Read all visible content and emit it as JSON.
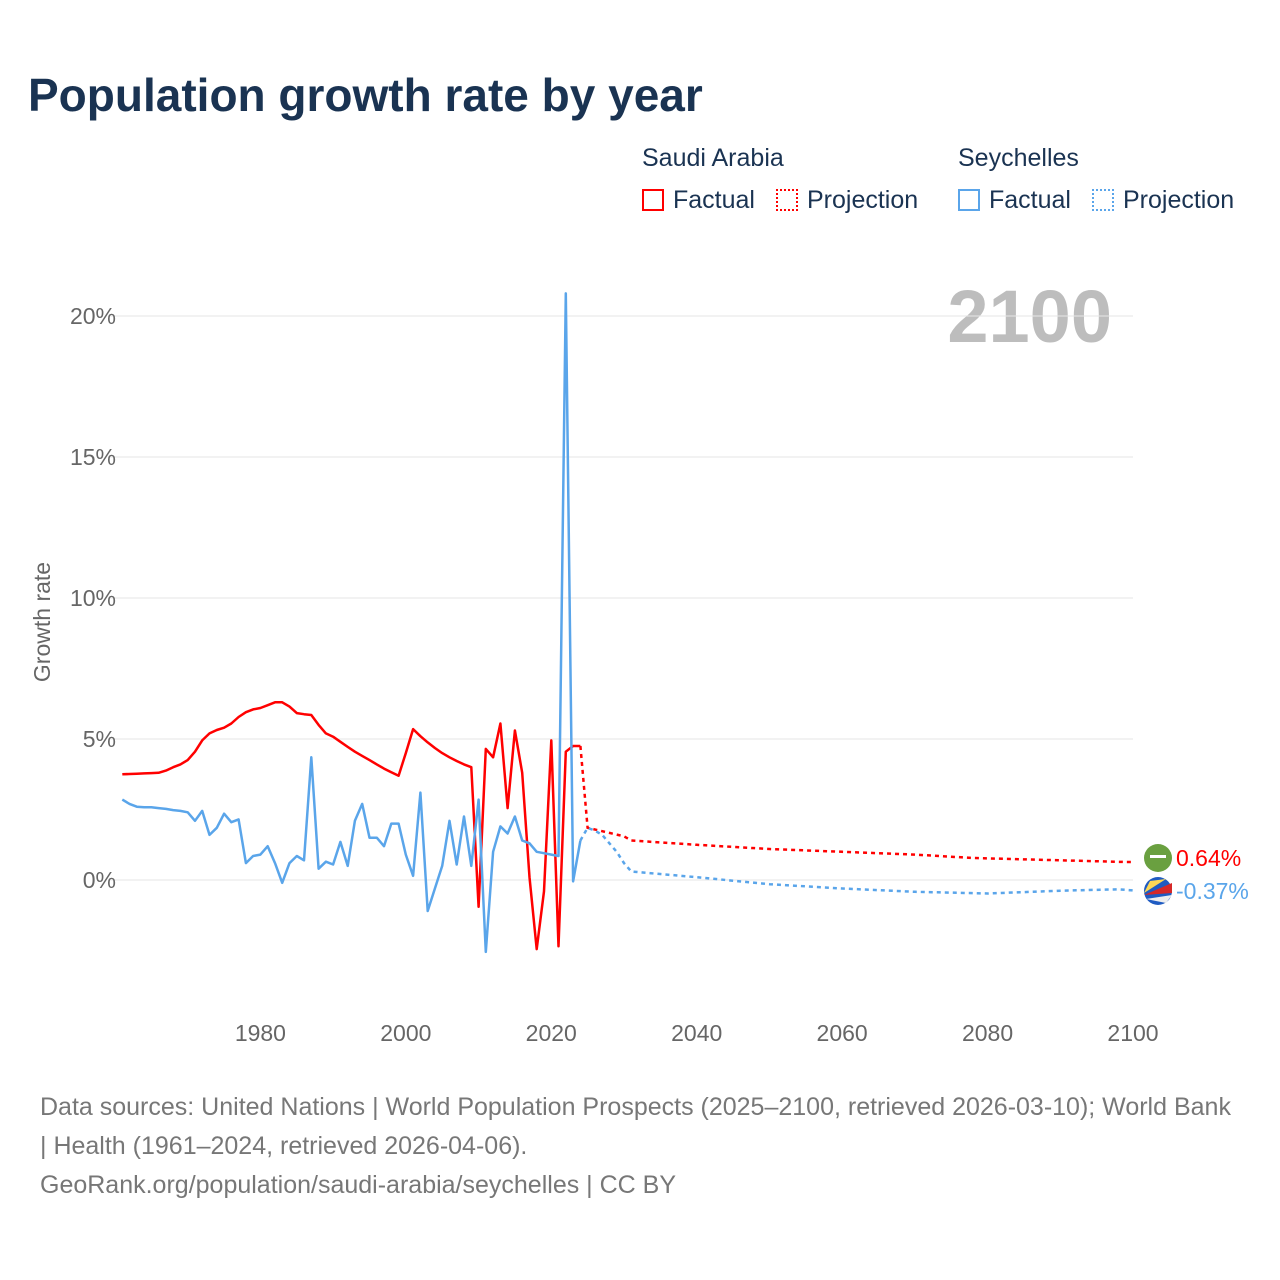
{
  "title": "Population growth rate by year",
  "legend": {
    "groups": [
      {
        "name": "Saudi Arabia",
        "color": "#ff0000",
        "factual": "Factual",
        "projection": "Projection"
      },
      {
        "name": "Seychelles",
        "color": "#5aa5ea",
        "factual": "Factual",
        "projection": "Projection"
      }
    ]
  },
  "year_label": "2100",
  "footer": {
    "line1": "Data sources: United Nations | World Population Prospects (2025–2100, retrieved 2026-03-10); World Bank | Health (1961–2024, retrieved 2026-04-06).",
    "line2": "GeoRank.org/population/saudi-arabia/seychelles | CC BY"
  },
  "chart_data": {
    "type": "line",
    "title": "Population growth rate by year",
    "ylabel": "Growth rate",
    "xlim": [
      1961,
      2100
    ],
    "ylim": [
      -4.5,
      21.5
    ],
    "xticks": [
      1980,
      2000,
      2020,
      2040,
      2060,
      2080,
      2100
    ],
    "yticks": [
      {
        "v": 0,
        "label": "0%"
      },
      {
        "v": 5,
        "label": "5%"
      },
      {
        "v": 10,
        "label": "10%"
      },
      {
        "v": 15,
        "label": "15%"
      },
      {
        "v": 20,
        "label": "20%"
      }
    ],
    "grid": true,
    "series": [
      {
        "name": "Saudi Arabia",
        "color": "#ff0000",
        "end_label": "0.64%",
        "factual_start": 1961,
        "factual": [
          3.75,
          3.76,
          3.77,
          3.78,
          3.79,
          3.8,
          3.88,
          4.0,
          4.1,
          4.25,
          4.55,
          4.95,
          5.2,
          5.32,
          5.4,
          5.55,
          5.78,
          5.95,
          6.05,
          6.1,
          6.2,
          6.3,
          6.3,
          6.15,
          5.92,
          5.88,
          5.85,
          5.5,
          5.2,
          5.08,
          4.9,
          4.72,
          4.55,
          4.4,
          4.25,
          4.1,
          3.95,
          3.82,
          3.7,
          4.5,
          5.35,
          5.1,
          4.88,
          4.68,
          4.5,
          4.35,
          4.22,
          4.1,
          4.0,
          -0.95,
          4.65,
          4.35,
          5.55,
          2.55,
          5.3,
          3.8,
          0.1,
          -2.45,
          -0.4,
          4.95,
          -2.35,
          4.55,
          4.75,
          4.75
        ],
        "projection": [
          [
            2024,
            4.75
          ],
          [
            2025,
            1.85
          ],
          [
            2030,
            1.55
          ],
          [
            2031,
            1.4
          ],
          [
            2040,
            1.25
          ],
          [
            2050,
            1.1
          ],
          [
            2060,
            1.0
          ],
          [
            2070,
            0.9
          ],
          [
            2078,
            0.78
          ],
          [
            2090,
            0.7
          ],
          [
            2099,
            0.64
          ],
          [
            2100,
            0.64
          ]
        ]
      },
      {
        "name": "Seychelles",
        "color": "#5aa5ea",
        "end_label": "-0.37%",
        "factual_start": 1961,
        "factual": [
          2.85,
          2.7,
          2.6,
          2.58,
          2.58,
          2.55,
          2.52,
          2.48,
          2.45,
          2.4,
          2.1,
          2.45,
          1.6,
          1.85,
          2.35,
          2.05,
          2.15,
          0.6,
          0.85,
          0.9,
          1.2,
          0.6,
          -0.1,
          0.6,
          0.85,
          0.7,
          4.35,
          0.4,
          0.65,
          0.55,
          1.35,
          0.5,
          2.1,
          2.7,
          1.5,
          1.5,
          1.2,
          2.0,
          2.0,
          0.9,
          0.15,
          3.1,
          -1.1,
          -0.3,
          0.5,
          2.1,
          0.55,
          2.25,
          0.5,
          2.85,
          -2.55,
          1.0,
          1.9,
          1.65,
          2.25,
          1.4,
          1.3,
          1.0,
          0.95,
          0.9,
          0.85,
          20.8,
          -0.05,
          1.4
        ],
        "projection": [
          [
            2024,
            1.4
          ],
          [
            2025,
            1.85
          ],
          [
            2026,
            1.75
          ],
          [
            2027,
            1.6
          ],
          [
            2028,
            1.3
          ],
          [
            2029,
            1.0
          ],
          [
            2030,
            0.6
          ],
          [
            2031,
            0.3
          ],
          [
            2040,
            0.1
          ],
          [
            2050,
            -0.15
          ],
          [
            2060,
            -0.3
          ],
          [
            2070,
            -0.42
          ],
          [
            2080,
            -0.48
          ],
          [
            2090,
            -0.38
          ],
          [
            2098,
            -0.33
          ],
          [
            2100,
            -0.37
          ]
        ]
      }
    ]
  }
}
